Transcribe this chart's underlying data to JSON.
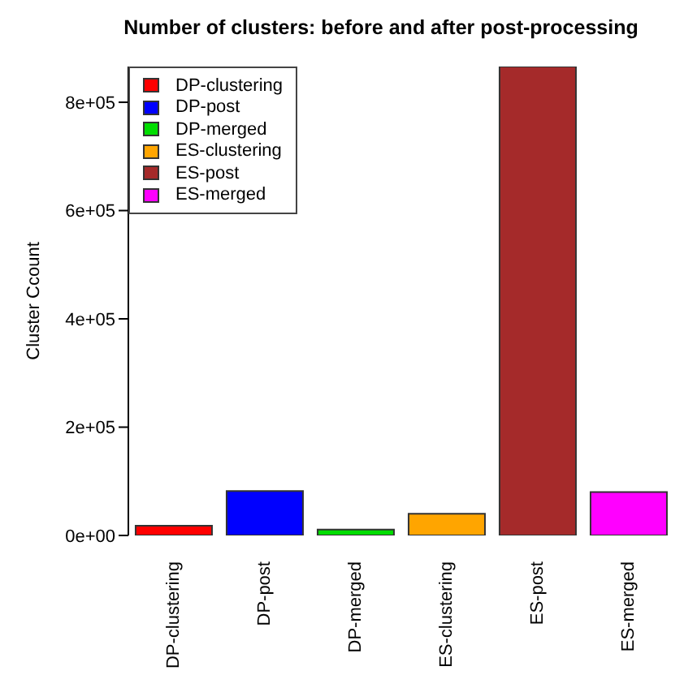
{
  "chart_data": {
    "type": "bar",
    "title": "Number of clusters: before and after post-processing",
    "ylabel": "Cluster Ccount",
    "categories": [
      "DP-clustering",
      "DP-post",
      "DP-merged",
      "ES-clustering",
      "ES-post",
      "ES-merged"
    ],
    "stacked": true,
    "series": [
      {
        "name": "DP-clustering",
        "color": "#ff0000",
        "values": [
          18000,
          null,
          null,
          null,
          null,
          null
        ]
      },
      {
        "name": "DP-post",
        "color": "#0000ff",
        "values": [
          null,
          82000,
          null,
          null,
          null,
          null
        ]
      },
      {
        "name": "DP-merged",
        "color": "#00dd00",
        "values": [
          null,
          null,
          11000,
          null,
          null,
          null
        ]
      },
      {
        "name": "ES-clustering",
        "color": "#ffa500",
        "values": [
          null,
          null,
          null,
          40000,
          null,
          null
        ]
      },
      {
        "name": "ES-post",
        "color": "#a52a2a",
        "values": [
          null,
          null,
          null,
          null,
          866000,
          null
        ]
      },
      {
        "name": "ES-merged",
        "color": "#ff00ff",
        "values": [
          null,
          null,
          null,
          null,
          null,
          80000
        ]
      }
    ],
    "ylim": [
      0,
      866000
    ],
    "yticks": [
      {
        "value": 0,
        "label": "0e+00"
      },
      {
        "value": 200000,
        "label": "2e+05"
      },
      {
        "value": 400000,
        "label": "4e+05"
      },
      {
        "value": 600000,
        "label": "6e+05"
      },
      {
        "value": 800000,
        "label": "8e+05"
      }
    ],
    "legend": "top left"
  }
}
